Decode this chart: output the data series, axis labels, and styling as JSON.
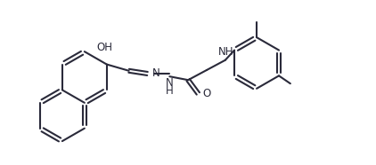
{
  "bg_color": "#ffffff",
  "line_color": "#2a2a3a",
  "line_width": 1.5,
  "font_size": 8.5,
  "figsize": [
    4.22,
    1.86
  ],
  "dpi": 100,
  "xlim": [
    0,
    10.5
  ],
  "ylim": [
    0,
    4.6
  ]
}
